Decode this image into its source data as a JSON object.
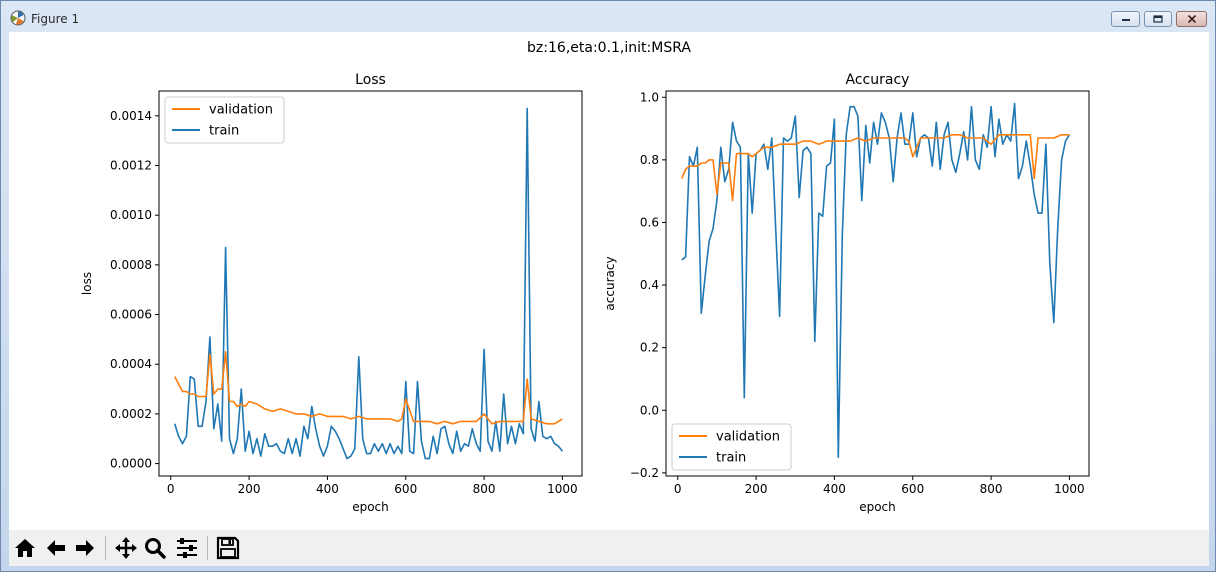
{
  "window": {
    "title": "Figure 1"
  },
  "figure": {
    "suptitle": "bz:16,eta:0.1,init:MSRA"
  },
  "chart_data": [
    {
      "type": "line",
      "title": "Loss",
      "xlabel": "epoch",
      "ylabel": "loss",
      "xlim": [
        -30,
        1050
      ],
      "ylim": [
        -5e-05,
        0.0015
      ],
      "xticks": [
        0,
        200,
        400,
        600,
        800,
        1000
      ],
      "xtick_labels": [
        "0",
        "200",
        "400",
        "600",
        "800",
        "1000"
      ],
      "yticks": [
        0,
        0.0002,
        0.0004,
        0.0006,
        0.0008,
        0.001,
        0.0012,
        0.0014
      ],
      "ytick_labels": [
        "0.0000",
        "0.0002",
        "0.0004",
        "0.0006",
        "0.0008",
        "0.0010",
        "0.0012",
        "0.0014"
      ],
      "legend_position": "upper left",
      "grid": false,
      "series": [
        {
          "name": "validation",
          "color": "#ff7f0e",
          "x": [
            10,
            20,
            30,
            40,
            50,
            60,
            70,
            80,
            90,
            100,
            110,
            120,
            130,
            140,
            150,
            160,
            170,
            180,
            190,
            200,
            220,
            240,
            260,
            280,
            300,
            320,
            340,
            360,
            380,
            400,
            420,
            440,
            460,
            480,
            500,
            520,
            540,
            560,
            580,
            590,
            600,
            620,
            640,
            660,
            680,
            700,
            720,
            740,
            760,
            780,
            800,
            820,
            840,
            860,
            880,
            900,
            910,
            920,
            940,
            960,
            980,
            1000
          ],
          "y": [
            0.00035,
            0.00032,
            0.00029,
            0.00029,
            0.00028,
            0.00028,
            0.00027,
            0.00027,
            0.00027,
            0.00044,
            0.00028,
            0.0003,
            0.0003,
            0.00045,
            0.00025,
            0.00025,
            0.00023,
            0.00024,
            0.00023,
            0.00025,
            0.00024,
            0.00022,
            0.00021,
            0.00022,
            0.00021,
            0.0002,
            0.0002,
            0.00019,
            0.0002,
            0.00019,
            0.00019,
            0.00019,
            0.00018,
            0.00019,
            0.00018,
            0.00018,
            0.00018,
            0.00018,
            0.00017,
            0.00018,
            0.00026,
            0.00017,
            0.00017,
            0.00017,
            0.00016,
            0.00017,
            0.00016,
            0.00017,
            0.00017,
            0.00017,
            0.0002,
            0.00016,
            0.00017,
            0.00017,
            0.00017,
            0.00017,
            0.00034,
            0.00018,
            0.00017,
            0.00016,
            0.00016,
            0.00018
          ]
        },
        {
          "name": "train",
          "color": "#1f77b4",
          "x": [
            10,
            20,
            30,
            40,
            50,
            60,
            70,
            80,
            90,
            100,
            110,
            120,
            130,
            140,
            150,
            160,
            170,
            180,
            190,
            200,
            210,
            220,
            230,
            240,
            250,
            260,
            270,
            280,
            290,
            300,
            310,
            320,
            330,
            340,
            350,
            360,
            370,
            380,
            390,
            400,
            410,
            420,
            430,
            440,
            450,
            460,
            470,
            480,
            490,
            500,
            510,
            520,
            530,
            540,
            550,
            560,
            570,
            580,
            590,
            600,
            610,
            620,
            630,
            640,
            650,
            660,
            670,
            680,
            690,
            700,
            710,
            720,
            730,
            740,
            750,
            760,
            770,
            780,
            790,
            800,
            810,
            820,
            830,
            840,
            850,
            860,
            870,
            880,
            890,
            900,
            910,
            920,
            930,
            940,
            950,
            960,
            970,
            980,
            990,
            1000
          ],
          "y": [
            0.00016,
            0.00011,
            8e-05,
            0.00011,
            0.00035,
            0.00034,
            0.00015,
            0.00015,
            0.00025,
            0.00051,
            0.00014,
            0.00024,
            9e-05,
            0.00087,
            0.0001,
            4e-05,
            0.0001,
            0.0003,
            5e-05,
            0.00013,
            4e-05,
            0.0001,
            3e-05,
            0.00012,
            7e-05,
            7e-05,
            8e-05,
            5e-05,
            4e-05,
            0.0001,
            4e-05,
            0.0001,
            3e-05,
            0.00015,
            0.0001,
            0.00023,
            0.00014,
            7e-05,
            3e-05,
            7e-05,
            0.00015,
            0.00013,
            0.0001,
            6e-05,
            2e-05,
            3e-05,
            6e-05,
            0.00043,
            0.0001,
            4e-05,
            4e-05,
            8e-05,
            5e-05,
            8e-05,
            4e-05,
            8e-05,
            4e-05,
            7e-05,
            4e-05,
            0.00033,
            5e-05,
            4e-05,
            0.00033,
            9e-05,
            2e-05,
            2e-05,
            0.00011,
            4e-05,
            0.00014,
            0.00015,
            8e-05,
            4e-05,
            0.00013,
            5e-05,
            8e-05,
            7e-05,
            0.00014,
            8e-05,
            5e-05,
            0.00046,
            9e-05,
            5e-05,
            0.00017,
            5e-05,
            0.00028,
            8e-05,
            0.00015,
            8e-05,
            0.00016,
            0.00012,
            0.00143,
            0.00014,
            9e-05,
            0.00025,
            0.00011,
            0.0001,
            0.00011,
            8e-05,
            7e-05,
            5e-05
          ]
        }
      ]
    },
    {
      "type": "line",
      "title": "Accuracy",
      "xlabel": "epoch",
      "ylabel": "accuracy",
      "xlim": [
        -30,
        1050
      ],
      "ylim": [
        -0.21,
        1.02
      ],
      "xticks": [
        0,
        200,
        400,
        600,
        800,
        1000
      ],
      "xtick_labels": [
        "0",
        "200",
        "400",
        "600",
        "800",
        "1000"
      ],
      "yticks": [
        -0.2,
        0.0,
        0.2,
        0.4,
        0.6,
        0.8,
        1.0
      ],
      "ytick_labels": [
        "−0.2",
        "0.0",
        "0.2",
        "0.4",
        "0.6",
        "0.8",
        "1.0"
      ],
      "legend_position": "lower left",
      "grid": false,
      "series": [
        {
          "name": "validation",
          "color": "#ff7f0e",
          "x": [
            10,
            20,
            30,
            40,
            50,
            60,
            70,
            80,
            90,
            100,
            110,
            120,
            130,
            140,
            150,
            160,
            170,
            180,
            190,
            200,
            220,
            240,
            260,
            280,
            300,
            320,
            340,
            360,
            380,
            400,
            420,
            440,
            460,
            480,
            500,
            520,
            540,
            560,
            580,
            590,
            600,
            620,
            640,
            660,
            680,
            700,
            720,
            740,
            760,
            780,
            800,
            820,
            840,
            860,
            880,
            900,
            910,
            920,
            940,
            960,
            980,
            1000
          ],
          "y": [
            0.74,
            0.77,
            0.78,
            0.78,
            0.78,
            0.79,
            0.79,
            0.8,
            0.8,
            0.69,
            0.79,
            0.79,
            0.79,
            0.67,
            0.82,
            0.82,
            0.82,
            0.82,
            0.81,
            0.82,
            0.84,
            0.84,
            0.85,
            0.85,
            0.85,
            0.86,
            0.86,
            0.85,
            0.86,
            0.86,
            0.86,
            0.86,
            0.87,
            0.86,
            0.87,
            0.87,
            0.87,
            0.87,
            0.87,
            0.86,
            0.81,
            0.87,
            0.87,
            0.87,
            0.87,
            0.88,
            0.88,
            0.87,
            0.87,
            0.87,
            0.85,
            0.88,
            0.88,
            0.88,
            0.88,
            0.88,
            0.74,
            0.87,
            0.87,
            0.87,
            0.88,
            0.88
          ]
        },
        {
          "name": "train",
          "color": "#1f77b4",
          "x": [
            10,
            20,
            30,
            40,
            50,
            60,
            70,
            80,
            90,
            100,
            110,
            120,
            130,
            140,
            150,
            160,
            170,
            180,
            190,
            200,
            210,
            220,
            230,
            240,
            250,
            260,
            270,
            280,
            290,
            300,
            310,
            320,
            330,
            340,
            350,
            360,
            370,
            380,
            390,
            400,
            410,
            420,
            430,
            440,
            450,
            460,
            470,
            480,
            490,
            500,
            510,
            520,
            530,
            540,
            550,
            560,
            570,
            580,
            590,
            600,
            610,
            620,
            630,
            640,
            650,
            660,
            670,
            680,
            690,
            700,
            710,
            720,
            730,
            740,
            750,
            760,
            770,
            780,
            790,
            800,
            810,
            820,
            830,
            840,
            850,
            860,
            870,
            880,
            890,
            900,
            910,
            920,
            930,
            940,
            950,
            960,
            970,
            980,
            990,
            1000
          ],
          "y": [
            0.48,
            0.49,
            0.81,
            0.78,
            0.84,
            0.31,
            0.43,
            0.54,
            0.58,
            0.67,
            0.84,
            0.73,
            0.77,
            0.92,
            0.86,
            0.84,
            0.04,
            0.82,
            0.63,
            0.82,
            0.83,
            0.85,
            0.77,
            0.87,
            0.58,
            0.3,
            0.87,
            0.86,
            0.87,
            0.94,
            0.68,
            0.83,
            0.84,
            0.82,
            0.22,
            0.63,
            0.62,
            0.78,
            0.79,
            0.93,
            -0.15,
            0.56,
            0.88,
            0.97,
            0.97,
            0.94,
            0.67,
            0.91,
            0.79,
            0.92,
            0.85,
            0.95,
            0.92,
            0.87,
            0.73,
            0.87,
            0.95,
            0.85,
            0.85,
            0.95,
            0.81,
            0.87,
            0.88,
            0.87,
            0.78,
            0.92,
            0.77,
            0.88,
            0.92,
            0.8,
            0.76,
            0.82,
            0.89,
            0.8,
            0.97,
            0.8,
            0.77,
            0.88,
            0.84,
            0.97,
            0.81,
            0.93,
            0.85,
            0.88,
            0.86,
            0.98,
            0.74,
            0.78,
            0.86,
            0.78,
            0.69,
            0.63,
            0.63,
            0.85,
            0.47,
            0.28,
            0.58,
            0.8,
            0.86,
            0.88
          ]
        }
      ]
    }
  ]
}
